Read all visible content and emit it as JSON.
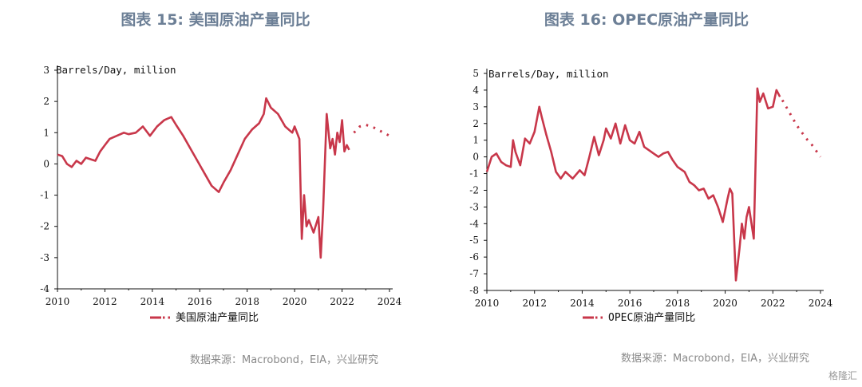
{
  "figures": [
    {
      "title": "图表 15: 美国原油产量同比",
      "source": "数据来源：Macrobond，EIA，兴业研究"
    },
    {
      "title": "图表 16: OPEC原油产量同比",
      "source": "数据来源：Macrobond，EIA，兴业研究"
    }
  ],
  "watermark": "格隆汇",
  "colors": {
    "series": "#c8374a",
    "title": "#6c7f96",
    "axis": "#111111",
    "source": "#8a8a8a"
  },
  "chart_data": [
    {
      "type": "line",
      "title": "图表 15: 美国原油产量同比",
      "unit_label": "Barrels/Day, million",
      "xlim": [
        2010,
        2024
      ],
      "ylim": [
        -4,
        3
      ],
      "x_ticks": [
        "2010",
        "2012",
        "2014",
        "2016",
        "2018",
        "2020",
        "2022",
        "2024"
      ],
      "y_ticks": [
        "3",
        "2",
        "1",
        "0",
        "-1",
        "-2",
        "-3",
        "-4"
      ],
      "legend": {
        "label": "美国原油产量同比",
        "position": "bottom-center"
      },
      "grid": false,
      "series": [
        {
          "name": "美国原油产量同比",
          "style": "solid",
          "x": [
            2010.0,
            2010.2,
            2010.4,
            2010.6,
            2010.8,
            2011.0,
            2011.2,
            2011.4,
            2011.6,
            2011.8,
            2012.0,
            2012.2,
            2012.5,
            2012.8,
            2013.0,
            2013.3,
            2013.6,
            2013.9,
            2014.2,
            2014.5,
            2014.8,
            2015.0,
            2015.3,
            2015.6,
            2015.9,
            2016.2,
            2016.5,
            2016.8,
            2017.0,
            2017.3,
            2017.6,
            2017.9,
            2018.2,
            2018.5,
            2018.7,
            2018.8,
            2019.0,
            2019.3,
            2019.6,
            2019.9,
            2020.0,
            2020.2,
            2020.3,
            2020.4,
            2020.5,
            2020.6,
            2020.8,
            2021.0,
            2021.1,
            2021.2,
            2021.35,
            2021.5,
            2021.6,
            2021.7,
            2021.8,
            2021.9,
            2022.0,
            2022.1,
            2022.2,
            2022.3
          ],
          "y": [
            0.3,
            0.25,
            0.0,
            -0.1,
            0.1,
            0.0,
            0.2,
            0.15,
            0.1,
            0.4,
            0.6,
            0.8,
            0.9,
            1.0,
            0.95,
            1.0,
            1.2,
            0.9,
            1.2,
            1.4,
            1.5,
            1.25,
            0.9,
            0.5,
            0.1,
            -0.3,
            -0.7,
            -0.9,
            -0.6,
            -0.2,
            0.3,
            0.8,
            1.1,
            1.3,
            1.6,
            2.1,
            1.8,
            1.6,
            1.2,
            1.0,
            1.2,
            0.8,
            -2.4,
            -1.0,
            -2.0,
            -1.8,
            -2.2,
            -1.7,
            -3.0,
            -1.5,
            1.6,
            0.5,
            0.8,
            0.3,
            1.0,
            0.7,
            1.4,
            0.4,
            0.6,
            0.45
          ]
        },
        {
          "name": "美国原油产量同比",
          "style": "dotted",
          "x": [
            2022.5,
            2022.75,
            2023.0,
            2023.25,
            2023.5,
            2023.75,
            2024.0
          ],
          "y": [
            1.0,
            1.2,
            1.25,
            1.2,
            1.1,
            1.0,
            0.9
          ]
        }
      ]
    },
    {
      "type": "line",
      "title": "图表 16: OPEC原油产量同比",
      "unit_label": "Barrels/Day, million",
      "xlim": [
        2010,
        2024
      ],
      "ylim": [
        -8,
        5
      ],
      "x_ticks": [
        "2010",
        "2012",
        "2014",
        "2016",
        "2018",
        "2020",
        "2022",
        "2024"
      ],
      "y_ticks": [
        "5",
        "4",
        "3",
        "2",
        "1",
        "0",
        "-1",
        "-2",
        "-3",
        "-4",
        "-5",
        "-6",
        "-7",
        "-8"
      ],
      "legend": {
        "label": "OPEC原油产量同比",
        "position": "bottom-center"
      },
      "grid": false,
      "series": [
        {
          "name": "OPEC原油产量同比",
          "style": "solid",
          "x": [
            2010.0,
            2010.2,
            2010.4,
            2010.6,
            2010.8,
            2011.0,
            2011.1,
            2011.2,
            2011.4,
            2011.6,
            2011.8,
            2012.0,
            2012.2,
            2012.3,
            2012.5,
            2012.7,
            2012.9,
            2013.1,
            2013.3,
            2013.6,
            2013.9,
            2014.1,
            2014.3,
            2014.5,
            2014.7,
            2014.9,
            2015.0,
            2015.2,
            2015.4,
            2015.6,
            2015.8,
            2016.0,
            2016.2,
            2016.4,
            2016.6,
            2016.8,
            2017.0,
            2017.2,
            2017.4,
            2017.6,
            2017.8,
            2018.0,
            2018.3,
            2018.5,
            2018.7,
            2018.9,
            2019.1,
            2019.3,
            2019.5,
            2019.7,
            2019.9,
            2020.1,
            2020.2,
            2020.3,
            2020.45,
            2020.6,
            2020.7,
            2020.8,
            2020.9,
            2021.0,
            2021.2,
            2021.35,
            2021.45,
            2021.6,
            2021.8,
            2022.0,
            2022.15,
            2022.3
          ],
          "y": [
            -0.9,
            0.0,
            0.2,
            -0.3,
            -0.5,
            -0.6,
            1.0,
            0.3,
            -0.5,
            1.1,
            0.8,
            1.5,
            3.0,
            2.4,
            1.3,
            0.3,
            -0.9,
            -1.3,
            -0.9,
            -1.3,
            -0.8,
            -1.1,
            0.0,
            1.2,
            0.1,
            1.0,
            1.7,
            1.1,
            2.0,
            0.8,
            1.9,
            1.0,
            0.8,
            1.5,
            0.6,
            0.4,
            0.2,
            0.0,
            0.2,
            0.3,
            -0.2,
            -0.6,
            -0.9,
            -1.5,
            -1.7,
            -2.0,
            -1.9,
            -2.5,
            -2.3,
            -3.0,
            -3.9,
            -2.5,
            -1.9,
            -2.2,
            -7.4,
            -5.5,
            -4.0,
            -4.9,
            -3.6,
            -3.0,
            -4.9,
            4.1,
            3.3,
            3.8,
            2.9,
            3.0,
            4.0,
            3.6
          ],
          "y_note": ""
        },
        {
          "name": "OPEC原油产量同比",
          "style": "dotted",
          "x": [
            2022.4,
            2022.6,
            2022.8,
            2023.0,
            2023.2,
            2023.4,
            2023.6,
            2023.8,
            2024.0
          ],
          "y": [
            3.4,
            2.9,
            2.4,
            1.9,
            1.5,
            1.1,
            0.8,
            0.4,
            0.0
          ]
        }
      ]
    }
  ]
}
